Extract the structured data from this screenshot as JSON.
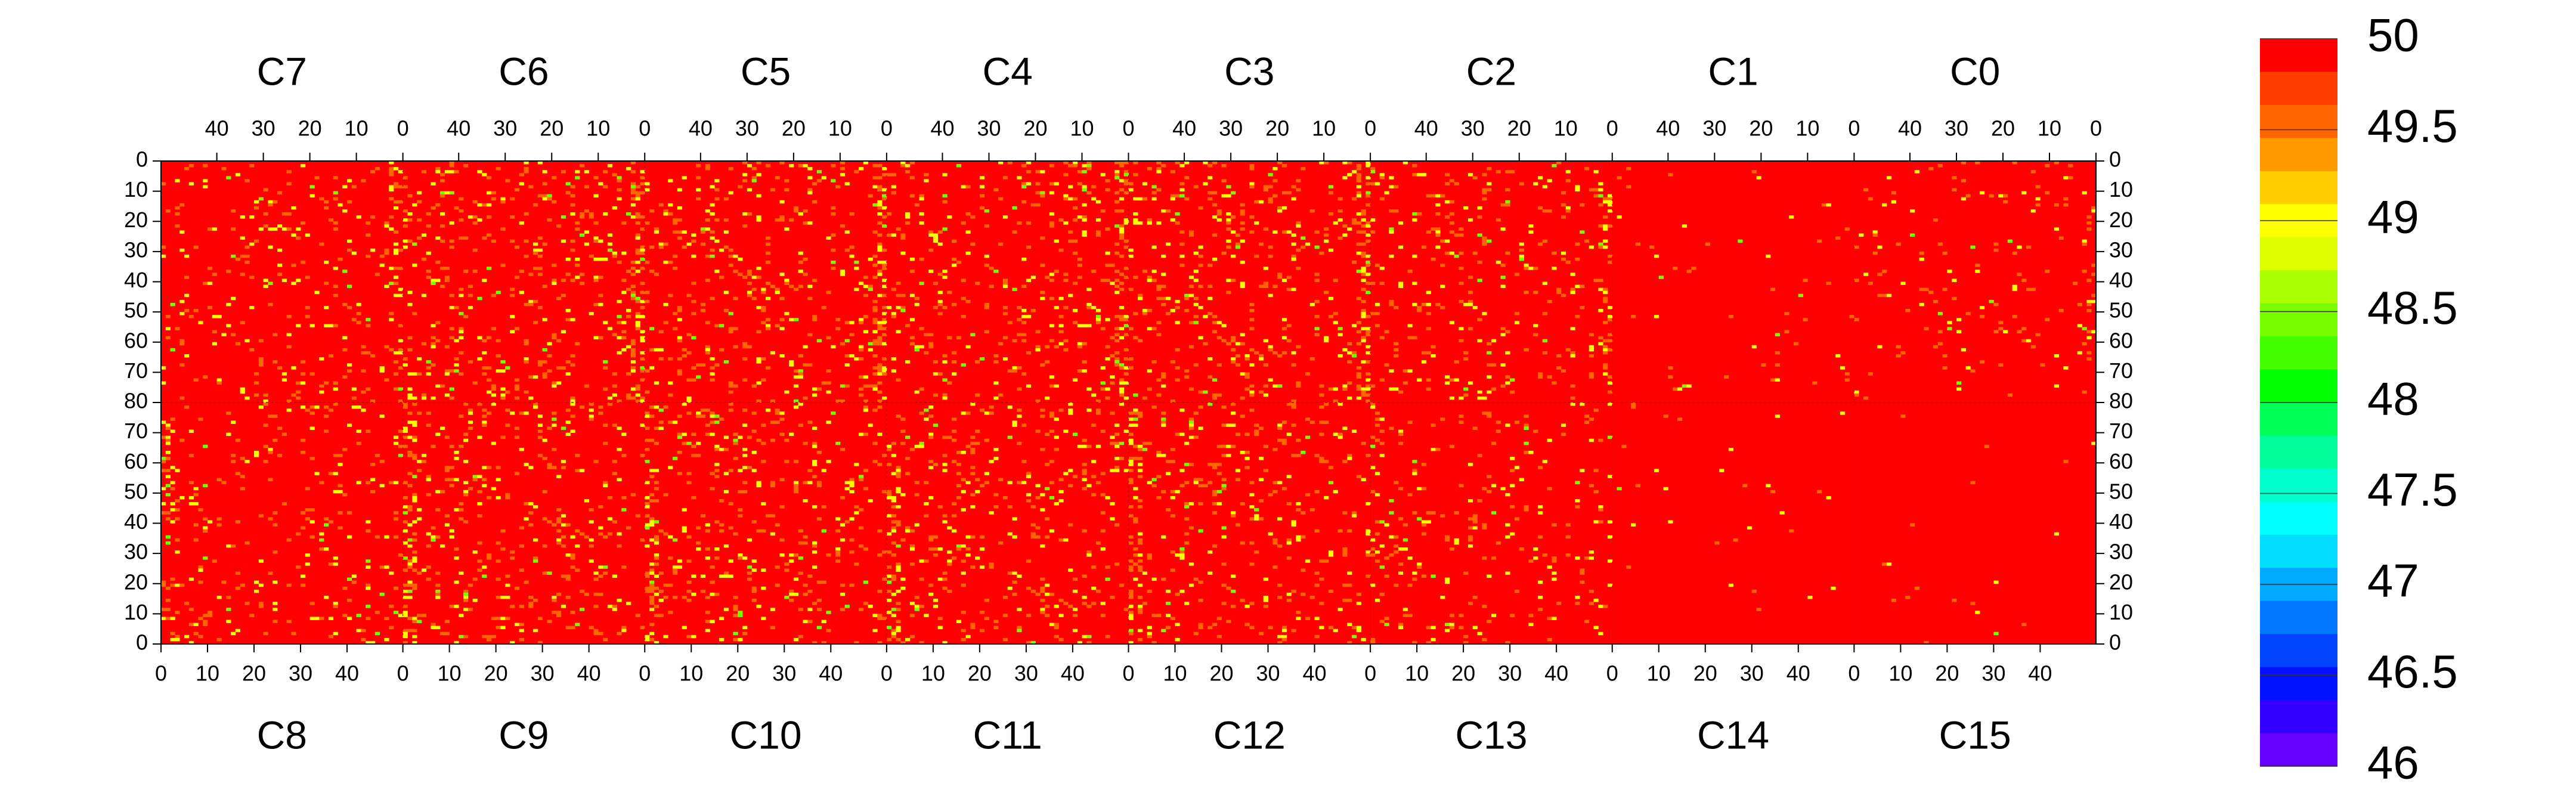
{
  "chart_data": {
    "type": "heatmap",
    "description_note": "",
    "top_chips": [
      "C7",
      "C6",
      "C5",
      "C4",
      "C3",
      "C2",
      "C1",
      "C0"
    ],
    "bottom_chips": [
      "C8",
      "C9",
      "C10",
      "C11",
      "C12",
      "C13",
      "C14",
      "C15"
    ],
    "column_ticks_top": [
      "40",
      "30",
      "20",
      "10",
      "0"
    ],
    "column_ticks_bottom": [
      "0",
      "10",
      "20",
      "30",
      "40"
    ],
    "row_ticks_top_half": [
      "0",
      "10",
      "20",
      "30",
      "40",
      "50",
      "60",
      "70",
      "80"
    ],
    "row_ticks_bottom_half": [
      "70",
      "60",
      "50",
      "40",
      "30",
      "20",
      "10",
      "0"
    ],
    "columns_per_chip": 52,
    "rows_per_chip": 80,
    "background_value": 50,
    "colorbar": {
      "min": 46,
      "max": 50,
      "labels": [
        "50",
        "49.5",
        "49",
        "48.5",
        "48",
        "47.5",
        "47",
        "46.5",
        "46"
      ],
      "label_values": [
        50,
        49.5,
        49,
        48.5,
        48,
        47.5,
        47,
        46.5,
        46
      ],
      "colors_top_to_bottom": [
        "#ff0000",
        "#ff3d00",
        "#ff6600",
        "#ff9900",
        "#ffcc00",
        "#ffff00",
        "#ddff00",
        "#aaff00",
        "#77ff00",
        "#44ff00",
        "#00ff00",
        "#00ff55",
        "#00ff99",
        "#00ffcc",
        "#00ffff",
        "#00ddff",
        "#00aaff",
        "#0077ff",
        "#0044ff",
        "#0011ff",
        "#3300ff",
        "#6600ff"
      ]
    },
    "deviant_pixel_density_per_chip": {
      "C7": 0.06,
      "C6": 0.09,
      "C5": 0.09,
      "C4": 0.09,
      "C3": 0.09,
      "C2": 0.07,
      "C1": 0.012,
      "C0": 0.03,
      "C8": 0.06,
      "C9": 0.08,
      "C10": 0.09,
      "C11": 0.08,
      "C12": 0.08,
      "C13": 0.05,
      "C14": 0.008,
      "C15": 0.005
    },
    "deviant_values_typical": [
      49.5,
      49,
      48.5
    ],
    "grid": false
  }
}
